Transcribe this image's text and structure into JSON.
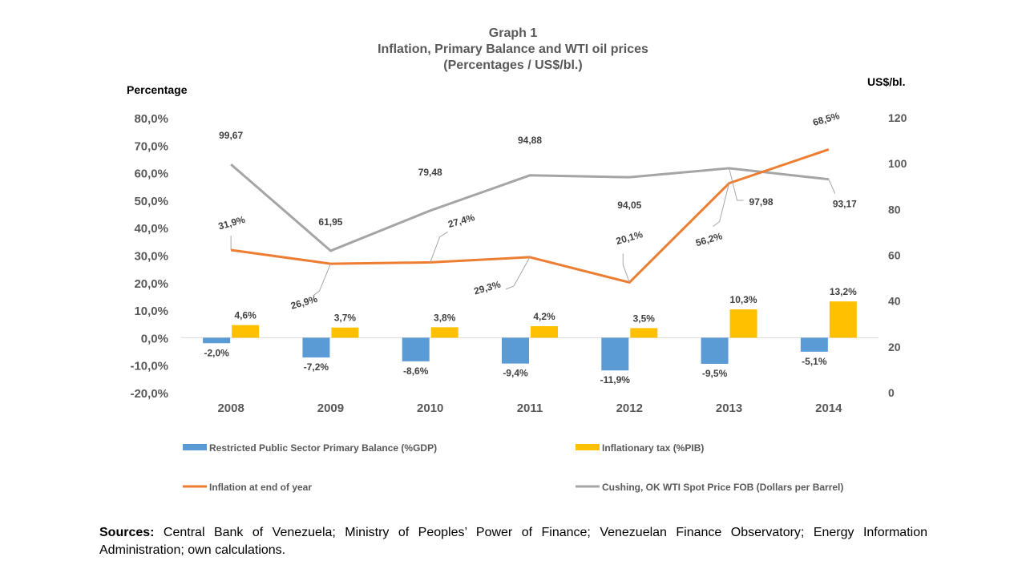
{
  "chart_data": {
    "type": "bar+line",
    "title": "Graph 1",
    "subtitle": "Inflation, Primary  Balance and WTI oil prices",
    "subtitle2": "(Percentages / US$/bl.)",
    "ylabel_left": "Percentage",
    "ylabel_right": "US$/bl.",
    "categories": [
      "2008",
      "2009",
      "2010",
      "2011",
      "2012",
      "2013",
      "2014"
    ],
    "ylim_left": [
      -20,
      80
    ],
    "yticks_left": [
      "80,0%",
      "70,0%",
      "60,0%",
      "50,0%",
      "40,0%",
      "30,0%",
      "20,0%",
      "10,0%",
      "0,0%",
      "-10,0%",
      "-20,0%"
    ],
    "ylim_right": [
      0,
      120
    ],
    "yticks_right": [
      "120",
      "100",
      "80",
      "60",
      "40",
      "20",
      "0"
    ],
    "series": [
      {
        "name": "Restricted Public Sector Primary Balance (%GDP)",
        "kind": "bar",
        "axis": "left",
        "color": "#5B9BD5",
        "values": [
          -2.0,
          -7.2,
          -8.6,
          -9.4,
          -11.9,
          -9.5,
          -5.1
        ],
        "labels": [
          "-2,0%",
          "-7,2%",
          "-8,6%",
          "-9,4%",
          "-11,9%",
          "-9,5%",
          "-5,1%"
        ]
      },
      {
        "name": "Inflationary tax (%PIB)",
        "kind": "bar",
        "axis": "left",
        "color": "#FFC000",
        "values": [
          4.6,
          3.7,
          3.8,
          4.2,
          3.5,
          10.3,
          13.2
        ],
        "labels": [
          "4,6%",
          "3,7%",
          "3,8%",
          "4,2%",
          "3,5%",
          "10,3%",
          "13,2%"
        ]
      },
      {
        "name": "Inflation at end of year",
        "kind": "line",
        "axis": "left",
        "color": "#ED7D31",
        "values": [
          31.9,
          26.9,
          27.4,
          29.3,
          20.1,
          56.2,
          68.5
        ],
        "labels": [
          "31,9%",
          "26,9%",
          "27,4%",
          "29,3%",
          "20,1%",
          "56,2%",
          "68,5%"
        ]
      },
      {
        "name": "Cushing, OK WTI Spot Price FOB (Dollars per Barrel)",
        "kind": "line",
        "axis": "right",
        "color": "#A5A5A5",
        "values": [
          99.67,
          61.95,
          79.48,
          94.88,
          94.05,
          97.98,
          93.17
        ],
        "labels": [
          "99,67",
          "61,95",
          "79,48",
          "94,88",
          "94,05",
          "97,98",
          "93,17"
        ]
      }
    ],
    "legend": "bottom",
    "grid": false
  },
  "sources": {
    "label": "Sources:",
    "text": " Central Bank of Venezuela; Ministry of Peoples’ Power of Finance; Venezuelan Finance Observatory; Energy Information Administration; own calculations."
  }
}
